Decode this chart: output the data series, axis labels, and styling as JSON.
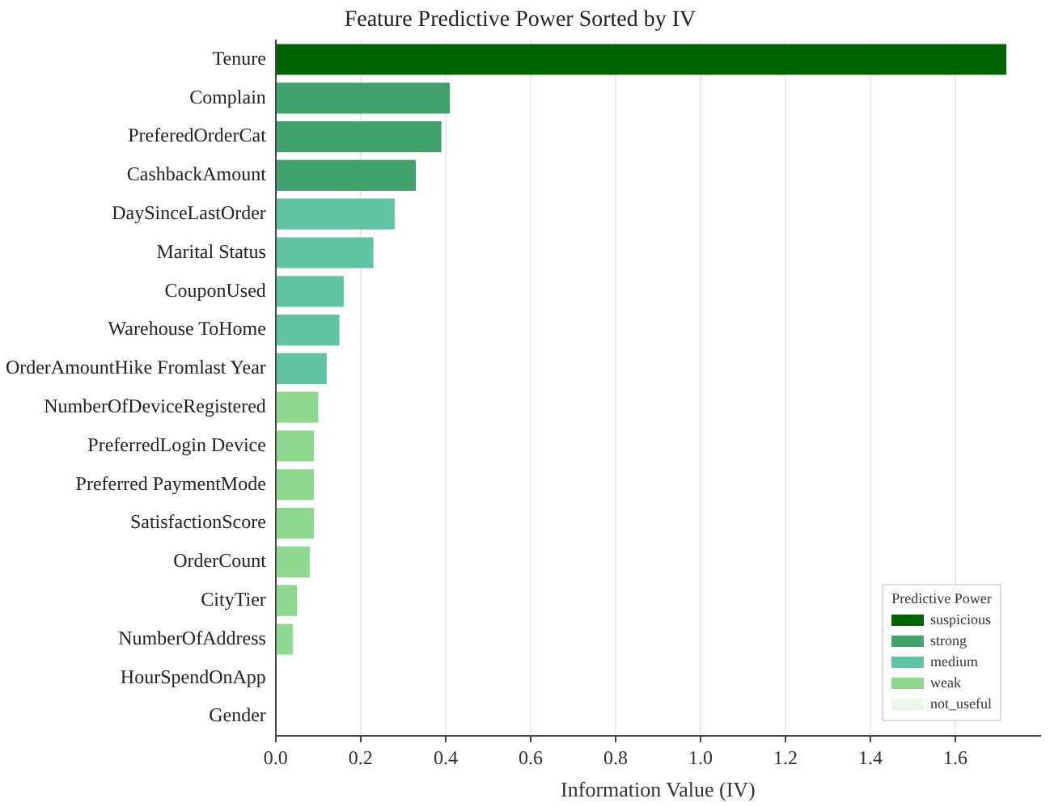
{
  "chart_data": {
    "type": "bar",
    "orientation": "horizontal",
    "title": "Feature Predictive Power Sorted by IV",
    "xlabel": "Information Value (IV)",
    "legend_title": "Predictive Power",
    "categories": [
      "Tenure",
      "Complain",
      "PreferedOrderCat",
      "CashbackAmount",
      "DaySinceLastOrder",
      "Marital Status",
      "CouponUsed",
      "Warehouse ToHome",
      "OrderAmountHike Fromlast Year",
      "NumberOfDeviceRegistered",
      "PreferredLogin Device",
      "Preferred PaymentMode",
      "SatisfactionScore",
      "OrderCount",
      "CityTier",
      "NumberOfAddress",
      "HourSpendOnApp",
      "Gender"
    ],
    "series": [
      {
        "name": "suspicious",
        "color": "#006400",
        "values": [
          1.72,
          null,
          null,
          null,
          null,
          null,
          null,
          null,
          null,
          null,
          null,
          null,
          null,
          null,
          null,
          null,
          null,
          null
        ]
      },
      {
        "name": "strong",
        "color": "#41a26e",
        "values": [
          null,
          0.41,
          0.39,
          0.33,
          null,
          null,
          null,
          null,
          null,
          null,
          null,
          null,
          null,
          null,
          null,
          null,
          null,
          null
        ]
      },
      {
        "name": "medium",
        "color": "#62c3a0",
        "values": [
          null,
          null,
          null,
          null,
          0.28,
          0.23,
          0.16,
          0.15,
          0.12,
          null,
          null,
          null,
          null,
          null,
          null,
          null,
          null,
          null
        ]
      },
      {
        "name": "weak",
        "color": "#8fd88f",
        "values": [
          null,
          null,
          null,
          null,
          null,
          null,
          null,
          null,
          null,
          0.1,
          0.09,
          0.09,
          0.09,
          0.08,
          0.05,
          0.04,
          null,
          null
        ]
      },
      {
        "name": "not_useful",
        "color": "#edf8e9",
        "values": [
          null,
          null,
          null,
          null,
          null,
          null,
          null,
          null,
          null,
          null,
          null,
          null,
          null,
          null,
          null,
          null,
          0,
          0
        ]
      }
    ],
    "xlim": [
      0,
      1.8
    ],
    "xticks": [
      {
        "value": 0,
        "label": "0.0"
      },
      {
        "value": 0.2,
        "label": "0.2"
      },
      {
        "value": 0.4,
        "label": "0.4"
      },
      {
        "value": 0.6,
        "label": "0.6"
      },
      {
        "value": 0.8,
        "label": "0.8"
      },
      {
        "value": 1,
        "label": "1.0"
      },
      {
        "value": 1.2,
        "label": "1.2"
      },
      {
        "value": 1.4,
        "label": "1.4"
      },
      {
        "value": 1.6,
        "label": "1.6"
      }
    ],
    "grid": "x",
    "legend": "bottom right"
  }
}
